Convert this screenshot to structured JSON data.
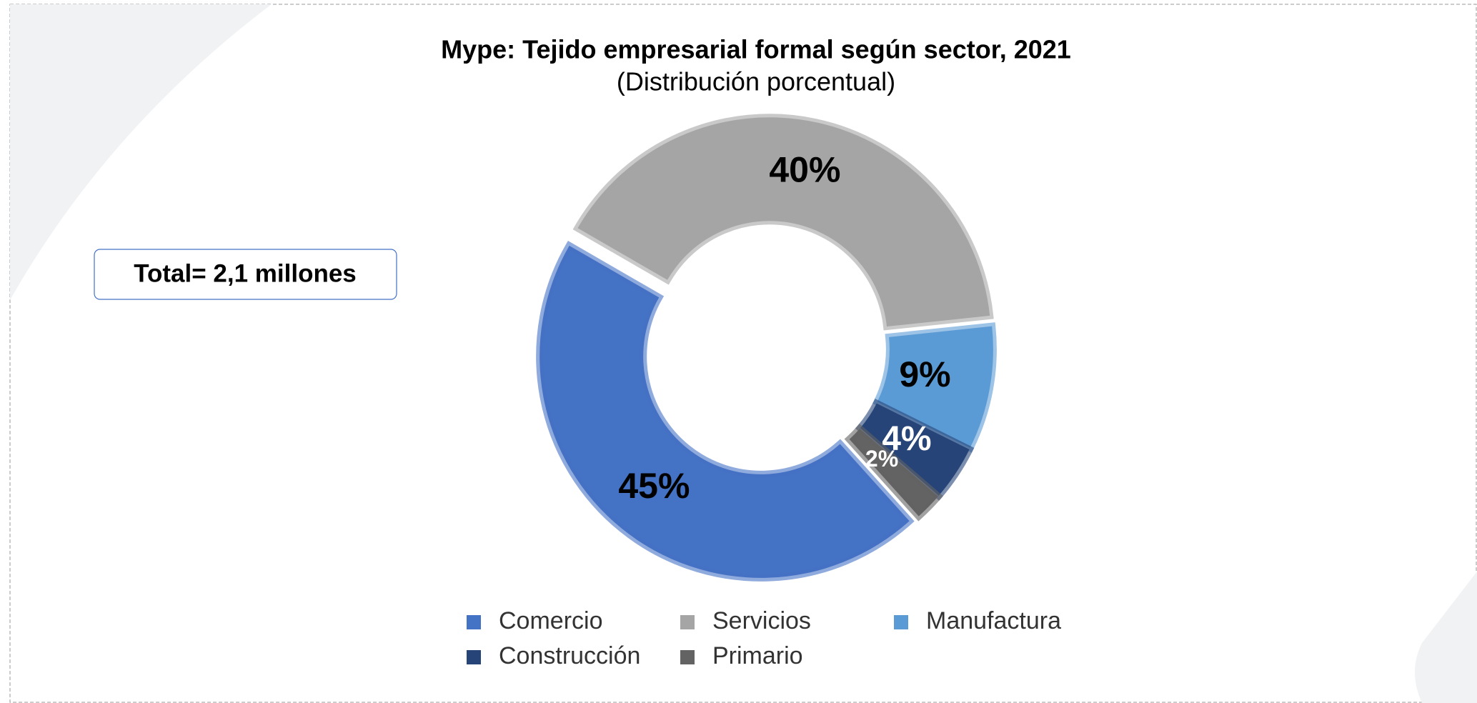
{
  "chart_data": {
    "type": "donut",
    "title": "Mype: Tejido empresarial formal según sector, 2021",
    "subtitle": "(Distribución porcentual)",
    "annotation": "Total= 2,1 millones",
    "categories": [
      "Comercio",
      "Servicios",
      "Manufactura",
      "Construcción",
      "Primario"
    ],
    "values": [
      45,
      40,
      9,
      4,
      2
    ],
    "value_labels": [
      "45%",
      "40%",
      "9%",
      "4%",
      "2%"
    ],
    "colors": [
      "#4472c4",
      "#a5a5a5",
      "#5b9bd5",
      "#264478",
      "#636363"
    ],
    "legend": "bottom"
  }
}
